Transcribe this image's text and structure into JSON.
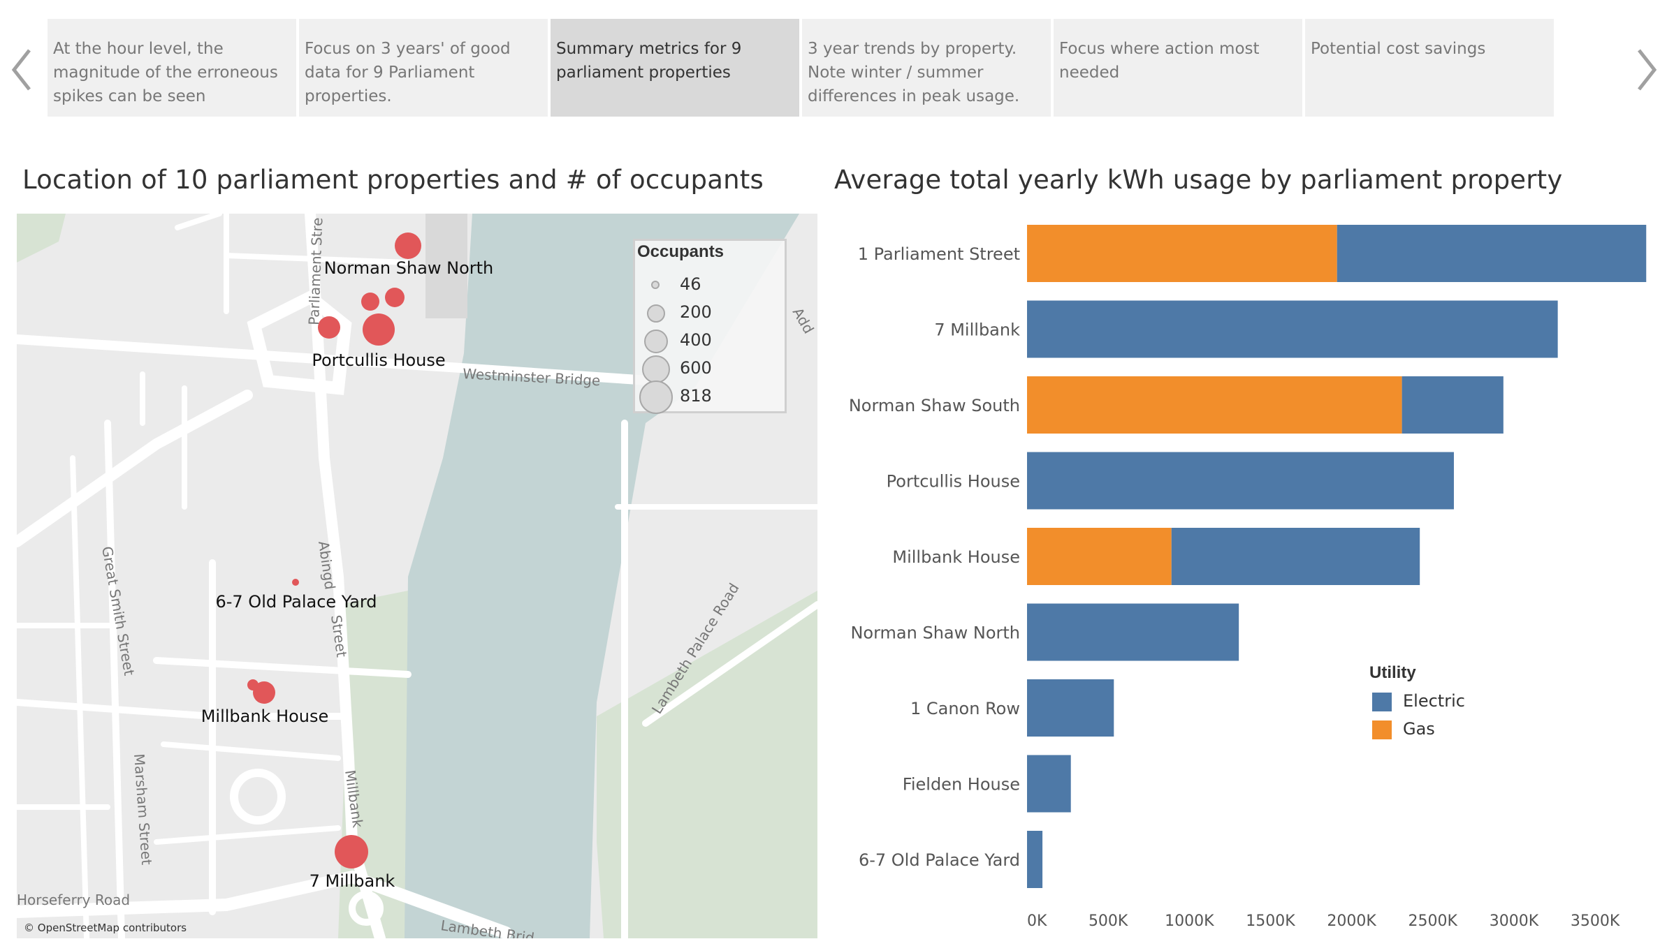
{
  "story": {
    "prev_label": "Previous",
    "next_label": "Next",
    "points": [
      {
        "text": "At the hour level, the magnitude of the erroneous spikes can be seen",
        "active": false
      },
      {
        "text": "Focus on 3 years' of good data for 9 Parliament properties.",
        "active": false
      },
      {
        "text": "Summary metrics for 9 parliament properties",
        "active": true
      },
      {
        "text": "3 year trends by property. Note winter / summer differences in peak usage.",
        "active": false
      },
      {
        "text": "Focus where action most needed",
        "active": false
      },
      {
        "text": "Potential cost savings",
        "active": false
      }
    ]
  },
  "map": {
    "title": "Location of 10 parliament properties and # of occupants",
    "attribution": "© OpenStreetMap contributors",
    "street_labels": [
      "Parliament Stre",
      "Westminster Bridge",
      "Abingd",
      "Street",
      "Great Smith Street",
      "Marsham Street",
      "Millbank",
      "Lambeth Palace Road",
      "Horseferry Road",
      "Lambeth Brid",
      "Add"
    ],
    "property_labels": [
      "Norman Shaw North",
      "Portcullis House",
      "6-7 Old Palace Yard",
      "Millbank House",
      "7 Millbank"
    ],
    "marker_color": "#e15759",
    "legend": {
      "title": "Occupants",
      "items": [
        "46",
        "200",
        "400",
        "600",
        "818"
      ]
    }
  },
  "chart": {
    "title": "Average total yearly kWh usage by parliament property"
  },
  "chart_data": {
    "type": "bar",
    "orientation": "horizontal",
    "stacked": true,
    "categories": [
      "1 Parliament Street",
      "7 Millbank",
      "Norman Shaw South",
      "Portcullis House",
      "Millbank House",
      "Norman Shaw North",
      "1 Canon Row",
      "Fielden House",
      "6-7 Old Palace Yard"
    ],
    "series": [
      {
        "name": "Gas",
        "color": "#f28e2b",
        "values": [
          1910000,
          0,
          2310000,
          0,
          890000,
          0,
          0,
          0,
          0
        ]
      },
      {
        "name": "Electric",
        "color": "#4e79a7",
        "values": [
          1905000,
          3270000,
          625000,
          2630000,
          1530000,
          1305000,
          535000,
          270000,
          95000
        ]
      }
    ],
    "x_ticks": [
      "0K",
      "500K",
      "1000K",
      "1500K",
      "2000K",
      "2500K",
      "3000K",
      "3500K"
    ],
    "xlim": [
      0,
      3900000
    ],
    "legend": {
      "title": "Utility",
      "placement": "right",
      "items": [
        "Electric",
        "Gas"
      ]
    }
  }
}
